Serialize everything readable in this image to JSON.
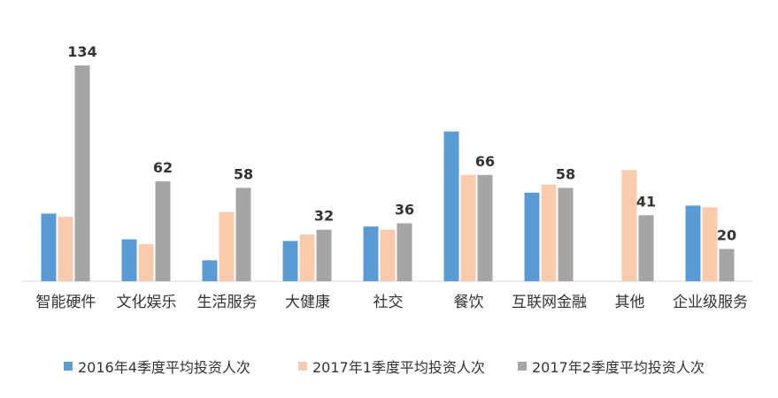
{
  "chart_data": {
    "type": "bar",
    "categories": [
      "智能硬件",
      "文化娱乐",
      "生活服务",
      "大健康",
      "社交",
      "餐饮",
      "互联网金融",
      "其他",
      "企业级服务"
    ],
    "series": [
      {
        "name": "2016年4季度平均投资人次",
        "color": "#5b9bd5",
        "values": [
          42,
          26,
          13,
          25,
          34,
          93,
          55,
          null,
          47
        ]
      },
      {
        "name": "2017年1季度平均投资人次",
        "color": "#f8cbad",
        "values": [
          40,
          23,
          43,
          29,
          32,
          66,
          60,
          69,
          46
        ]
      },
      {
        "name": "2017年2季度平均投资人次",
        "color": "#a5a5a5",
        "values": [
          134,
          62,
          58,
          32,
          36,
          66,
          58,
          41,
          20
        ],
        "show_labels": true
      }
    ],
    "legend": "bottom"
  }
}
